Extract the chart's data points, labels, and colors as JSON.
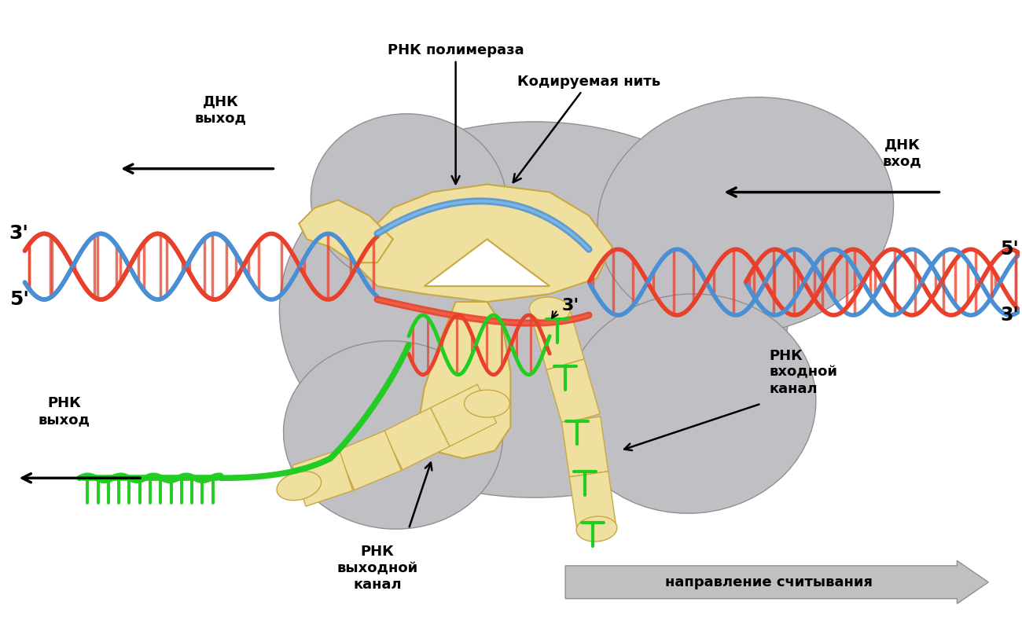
{
  "bg_color": "#ffffff",
  "enzyme_color": "#f0e0a0",
  "enzyme_outline": "#c8a840",
  "gray_color": "#c0c0c4",
  "gray_outline": "#909090",
  "gray_light": "#d8d8dc",
  "dna_red": "#e8402a",
  "dna_blue": "#4a8fd4",
  "rna_green": "#22cc22",
  "rna_green_dark": "#169016",
  "text_color": "#000000",
  "labels": {
    "rnk_polimeraz": "РНК полимераза",
    "kodiruemaya_nit": "Кодируемая нить",
    "dnk_vyhod": "ДНК\nвыход",
    "dnk_vhod": "ДНК\nвход",
    "rnk_vyhod": "РНК\nвыход",
    "rnk_vhodnoj_kanal": "РНК\nвходной\nканал",
    "rnk_vyhodnoj_kanal": "РНК\nвыходной\nканал",
    "napravlenie": "направление считывания",
    "3p_left_top": "3'",
    "5p_left_bot": "5'",
    "5p_right_top": "5'",
    "3p_right_bot": "3'",
    "3p_center": "3'"
  },
  "figsize": [
    13.0,
    7.94
  ],
  "dpi": 100
}
